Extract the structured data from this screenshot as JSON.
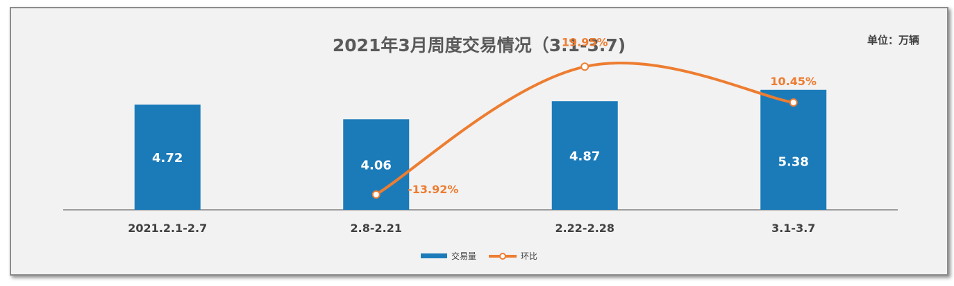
{
  "title": "2021年3月周度交易情况（3.1-3.7)",
  "unit_label": "单位：万辆",
  "colors": {
    "bar": "#1b7bb9",
    "line": "#ed7d31",
    "axis": "#7f7f7f",
    "background": "#f2f2f2"
  },
  "legend": {
    "bar_label": "交易量",
    "line_label": "环比"
  },
  "chart_data": {
    "type": "bar",
    "categories": [
      "2021.2.1-2.7",
      "2.8-2.21",
      "2.22-2.28",
      "3.1-3.7"
    ],
    "series": [
      {
        "name": "交易量",
        "type": "bar",
        "values": [
          4.72,
          4.06,
          4.87,
          5.38
        ],
        "labels": [
          "4.72",
          "4.06",
          "4.87",
          "5.38"
        ]
      },
      {
        "name": "环比",
        "type": "line",
        "smooth": true,
        "values": [
          null,
          -13.92,
          19.95,
          10.45
        ],
        "labels": [
          "",
          "-13.92%",
          "19.95%",
          "10.45%"
        ]
      }
    ],
    "title": "2021年3月周度交易情况（3.1-3.7)",
    "ylabel": "",
    "grid": false,
    "legend_position": "bottom"
  }
}
